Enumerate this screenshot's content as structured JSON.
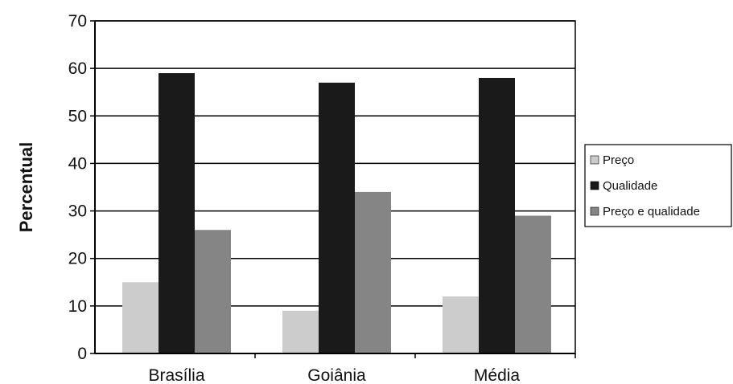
{
  "chart_data": {
    "type": "bar",
    "title": "",
    "xlabel": "",
    "ylabel": "Percentual",
    "ylim": [
      0,
      70
    ],
    "yticks": [
      0,
      10,
      20,
      30,
      40,
      50,
      60,
      70
    ],
    "grid": true,
    "legend_position": "right",
    "categories": [
      "Brasília",
      "Goiânia",
      "Média"
    ],
    "series": [
      {
        "name": "Preço",
        "values": [
          15,
          9,
          12
        ],
        "color": "#cccccc"
      },
      {
        "name": "Qualidade",
        "values": [
          59,
          57,
          58
        ],
        "color": "#1a1a1a"
      },
      {
        "name": "Preço e qualidade",
        "values": [
          26,
          34,
          29
        ],
        "color": "#858585"
      }
    ]
  }
}
